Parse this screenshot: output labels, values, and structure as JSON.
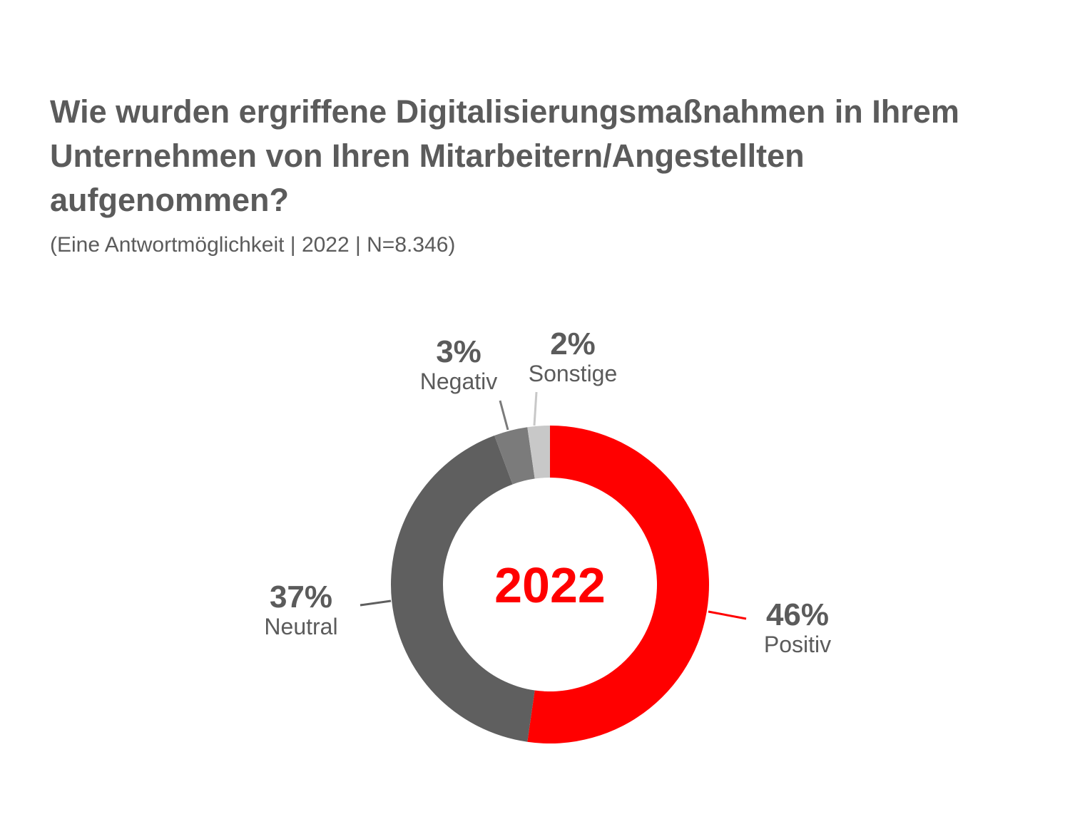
{
  "title": "Wie wurden ergriffene Digitalisierungsmaßnahmen in Ihrem Unternehmen von Ihren Mitarbeitern/Angestellten aufgenommen?",
  "subtitle": "(Eine Antwortmöglichkeit | 2022 | N=8.346)",
  "colors": {
    "text": "#5b5b5b",
    "accent": "#ff0000"
  },
  "chart_data": {
    "type": "pie",
    "variant": "donut",
    "center_label": "2022",
    "slices": [
      {
        "label": "Positiv",
        "value": 46,
        "value_label": "46%",
        "color": "#ff0000"
      },
      {
        "label": "Neutral",
        "value": 37,
        "value_label": "37%",
        "color": "#5f5f5f"
      },
      {
        "label": "Negativ",
        "value": 3,
        "value_label": "3%",
        "color": "#7b7b7b"
      },
      {
        "label": "Sonstige",
        "value": 2,
        "value_label": "2%",
        "color": "#c8c8c8"
      }
    ]
  }
}
